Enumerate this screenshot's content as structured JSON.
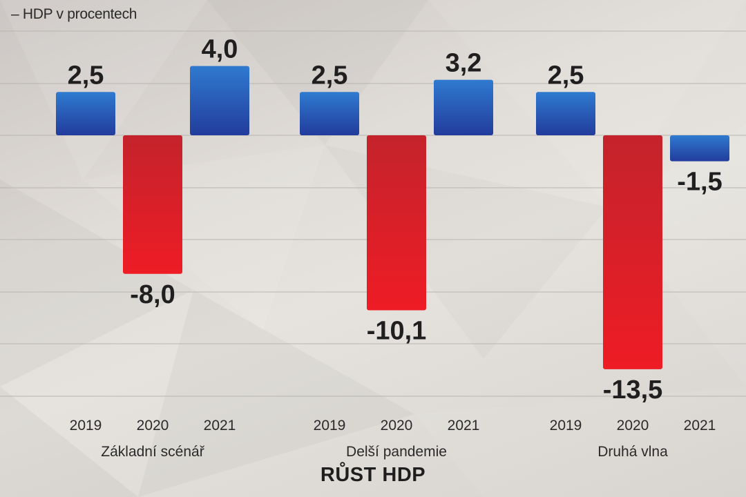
{
  "subtitle": "– HDP v procentech",
  "title": "RŮST HDP",
  "colors": {
    "positive_top": "#2f7ad0",
    "positive_bottom": "#223c9c",
    "negative_top": "#c4232c",
    "negative_bottom": "#ee1c25",
    "gridline": "#b8b4b0"
  },
  "chart_data": {
    "type": "bar",
    "title": "RŮST HDP",
    "subtitle": "– HDP v procentech",
    "xlabel": "",
    "ylabel": "",
    "ylim": [
      -14,
      4
    ],
    "grid": true,
    "legend": "none",
    "groups": [
      {
        "name": "Základní scénář",
        "categories": [
          "2019",
          "2020",
          "2021"
        ],
        "values": [
          2.5,
          -8.0,
          4.0
        ],
        "labels": [
          "2,5",
          "-8,0",
          "4,0"
        ]
      },
      {
        "name": "Delší pandemie",
        "categories": [
          "2019",
          "2020",
          "2021"
        ],
        "values": [
          2.5,
          -10.1,
          3.2
        ],
        "labels": [
          "2,5",
          "-10,1",
          "3,2"
        ]
      },
      {
        "name": "Druhá vlna",
        "categories": [
          "2019",
          "2020",
          "2021"
        ],
        "values": [
          2.5,
          -13.5,
          -1.5
        ],
        "labels": [
          "2,5",
          "-13,5",
          "-1,5"
        ]
      }
    ]
  }
}
